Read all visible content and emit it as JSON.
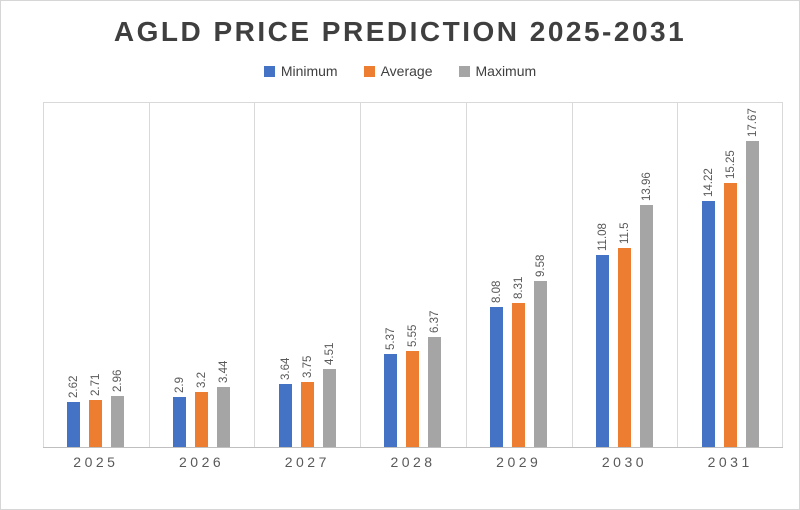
{
  "chart_data": {
    "type": "bar",
    "title": "AGLD PRICE PREDICTION 2025-2031",
    "categories": [
      "2025",
      "2026",
      "2027",
      "2028",
      "2029",
      "2030",
      "2031"
    ],
    "series": [
      {
        "name": "Minimum",
        "color": "#4472C4",
        "values": [
          2.62,
          2.9,
          3.64,
          5.37,
          8.08,
          11.08,
          14.22
        ]
      },
      {
        "name": "Average",
        "color": "#ED7D31",
        "values": [
          2.71,
          3.2,
          3.75,
          5.55,
          8.31,
          11.5,
          15.25
        ]
      },
      {
        "name": "Maximum",
        "color": "#A5A5A5",
        "values": [
          2.96,
          3.44,
          4.51,
          6.37,
          9.58,
          13.96,
          17.67
        ]
      }
    ],
    "xlabel": "",
    "ylabel": "",
    "ylim": [
      0,
      20
    ],
    "legend_position": "top",
    "gridlines": "vertical-category-boundaries",
    "data_labels": "rotated-90-above-bars"
  },
  "colors": {
    "title_text": "#3F3F3F",
    "legend_text": "#404040",
    "axis_label_text": "#595959",
    "data_label_text": "#595959",
    "gridline": "#D9D9D9",
    "axis_line": "#BFBFBF",
    "background": "#FFFFFF",
    "frame_border": "#D6D6D6"
  }
}
